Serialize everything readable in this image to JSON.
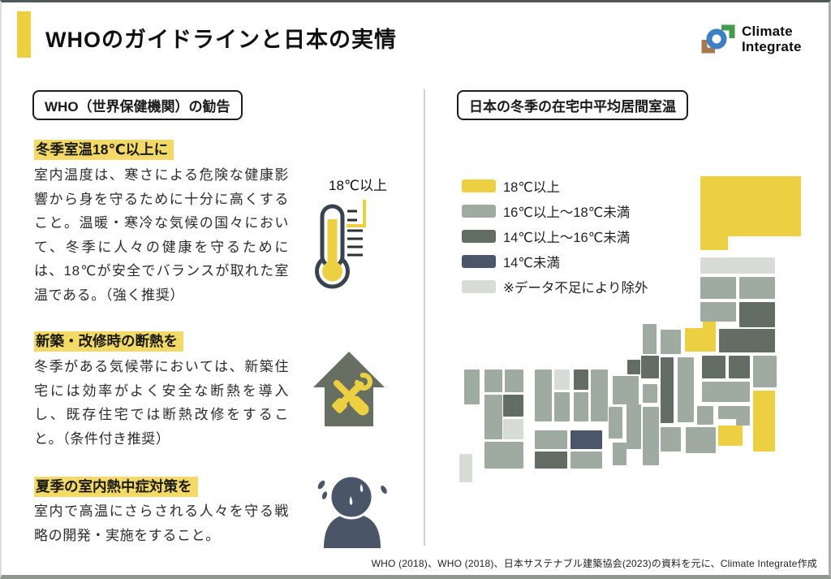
{
  "page": {
    "title": "WHOのガイドラインと日本の実情",
    "footer": "WHO (2018)、WHO (2018)、日本サステナブル建築協会(2023)の資料を元に、Climate Integrate作成"
  },
  "logo": {
    "line1": "Climate",
    "line2": "Integrate"
  },
  "colors": {
    "accent": "#edd042",
    "highlight": "#f3da68",
    "house_icon": "#666f61",
    "person_icon": "#4a5568",
    "thermo_outline": "#39434f",
    "tick": "#2e2e2e",
    "logo_blue": "#3c7fc2",
    "logo_green": "#439b4e",
    "logo_brown": "#a67a4e",
    "divider": "#d0d0d0",
    "text": "#1a1a1a"
  },
  "left_panel": {
    "header": "WHO（世界保健機関）の勧告",
    "thermometer_label": "18℃以上",
    "sections": [
      {
        "heading": "冬季室温18℃以上に",
        "body": "室内温度は、寒さによる危険な健康影響から身を守るために十分に高くすること。温暖・寒冷な気候の国々において、冬季に人々の健康を守るためには、18℃が安全でバランスが取れた室温である。（強く推奨）"
      },
      {
        "heading": "新築・改修時の断熱を",
        "body": "冬季がある気候帯においては、新築住宅には効率がよく安全な断熱を導入し、既存住宅では断熱改修をすること。（条件付き推奨）"
      },
      {
        "heading": "夏季の室内熱中症対策を",
        "body": "室内で高温にさらされる人々を守る戦略の開発・実施をすること。"
      }
    ]
  },
  "right_panel": {
    "header": "日本の冬季の在宅中平均居間室温"
  },
  "chart_data": {
    "type": "heatmap",
    "title": "日本の冬季の在宅中平均居間室温",
    "legend": [
      {
        "label": "18℃以上",
        "category": "18plus",
        "color": "#edd042"
      },
      {
        "label": "16℃以上〜18℃未満",
        "category": "16to18",
        "color": "#9faaa0"
      },
      {
        "label": "14℃以上〜16℃未満",
        "category": "14to16",
        "color": "#636d63"
      },
      {
        "label": "14℃未満",
        "category": "below14",
        "color": "#4b5768"
      },
      {
        "label": "※データ不足により除外",
        "category": "excluded",
        "color": "#d8dcd6"
      }
    ],
    "tiles": [
      {
        "name": "hokkaido",
        "cat": "18plus",
        "rects": [
          [
            306,
            19,
            124,
            74
          ],
          [
            306,
            91,
            34,
            19
          ]
        ]
      },
      {
        "name": "aomori",
        "cat": "excluded",
        "rects": [
          [
            306,
            119,
            92,
            20
          ]
        ]
      },
      {
        "name": "akita",
        "cat": "16to18",
        "rects": [
          [
            306,
            143,
            44,
            27
          ]
        ]
      },
      {
        "name": "iwate",
        "cat": "16to18",
        "rects": [
          [
            354,
            143,
            44,
            27
          ]
        ]
      },
      {
        "name": "yamagata",
        "cat": "16to18",
        "rects": [
          [
            306,
            174,
            44,
            24
          ]
        ]
      },
      {
        "name": "miyagi",
        "cat": "14to16",
        "rects": [
          [
            354,
            174,
            44,
            31
          ]
        ]
      },
      {
        "name": "niigata",
        "cat": "18plus",
        "rects": [
          [
            309,
            198,
            16,
            9
          ],
          [
            287,
            206,
            38,
            29
          ]
        ]
      },
      {
        "name": "fukushima",
        "cat": "14to16",
        "rects": [
          [
            329,
            207,
            69,
            29
          ]
        ]
      },
      {
        "name": "gunma",
        "cat": "14to16",
        "rects": [
          [
            308,
            240,
            29,
            28
          ]
        ]
      },
      {
        "name": "tochigi",
        "cat": "14to16",
        "rects": [
          [
            341,
            240,
            26,
            28
          ]
        ]
      },
      {
        "name": "ibaraki",
        "cat": "16to18",
        "rects": [
          [
            371,
            240,
            29,
            39
          ]
        ]
      },
      {
        "name": "saitama",
        "cat": "16to18",
        "rects": [
          [
            308,
            272,
            59,
            25
          ]
        ]
      },
      {
        "name": "tokyo",
        "cat": "16to18",
        "rects": [
          [
            328,
            302,
            39,
            16
          ],
          [
            350,
            318,
            17,
            8
          ]
        ]
      },
      {
        "name": "kanagawa",
        "cat": "18plus",
        "rects": [
          [
            328,
            326,
            30,
            25
          ]
        ]
      },
      {
        "name": "chiba",
        "cat": "18plus",
        "rects": [
          [
            371,
            283,
            27,
            75
          ]
        ]
      },
      {
        "name": "ishikawa",
        "cat": "16to18",
        "rects": [
          [
            235,
            201,
            17,
            37
          ]
        ]
      },
      {
        "name": "toyama",
        "cat": "16to18",
        "rects": [
          [
            257,
            208,
            25,
            30
          ]
        ]
      },
      {
        "name": "nagano",
        "cat": "14to16",
        "rects": [
          [
            257,
            242,
            16,
            81
          ]
        ]
      },
      {
        "name": "gifu",
        "cat": "16to18",
        "rects": [
          [
            278,
            242,
            20,
            80
          ]
        ]
      },
      {
        "name": "yamanashi",
        "cat": "16to18",
        "rects": [
          [
            302,
            302,
            20,
            23
          ]
        ]
      },
      {
        "name": "shizuoka",
        "cat": "16to18",
        "rects": [
          [
            288,
            328,
            37,
            32
          ]
        ]
      },
      {
        "name": "aichi",
        "cat": "16to18",
        "rects": [
          [
            257,
            328,
            25,
            30
          ]
        ]
      },
      {
        "name": "shiga",
        "cat": "14to16",
        "rects": [
          [
            233,
            240,
            22,
            28
          ],
          [
            216,
            245,
            16,
            18
          ]
        ]
      },
      {
        "name": "fukui",
        "cat": "16to18",
        "rects": [
          [
            235,
            275,
            18,
            23
          ]
        ]
      },
      {
        "name": "kyoto",
        "cat": "16to18",
        "rects": [
          [
            198,
            265,
            32,
            35
          ]
        ]
      },
      {
        "name": "hyogo",
        "cat": "16to18",
        "rects": [
          [
            171,
            257,
            21,
            64
          ]
        ]
      },
      {
        "name": "osaka",
        "cat": "16to18",
        "rects": [
          [
            193,
            303,
            17,
            39
          ]
        ]
      },
      {
        "name": "nara",
        "cat": "16to18",
        "rects": [
          [
            215,
            300,
            18,
            55
          ]
        ]
      },
      {
        "name": "wakayama",
        "cat": "16to18",
        "rects": [
          [
            198,
            347,
            17,
            28
          ]
        ]
      },
      {
        "name": "mie",
        "cat": "16to18",
        "rects": [
          [
            235,
            303,
            20,
            72
          ]
        ]
      },
      {
        "name": "tottori",
        "cat": "14to16",
        "rects": [
          [
            150,
            257,
            18,
            25
          ]
        ]
      },
      {
        "name": "okayama",
        "cat": "16to18",
        "rects": [
          [
            150,
            285,
            18,
            36
          ]
        ]
      },
      {
        "name": "shimane",
        "cat": "excluded",
        "rects": [
          [
            126,
            257,
            19,
            25
          ]
        ]
      },
      {
        "name": "hiroshima",
        "cat": "16to18",
        "rects": [
          [
            126,
            285,
            19,
            36
          ]
        ]
      },
      {
        "name": "yamaguchi",
        "cat": "16to18",
        "rects": [
          [
            102,
            257,
            21,
            64
          ]
        ]
      },
      {
        "name": "kagawa",
        "cat": "below14",
        "rects": [
          [
            146,
            332,
            39,
            23
          ]
        ]
      },
      {
        "name": "ehime",
        "cat": "16to18",
        "rects": [
          [
            102,
            332,
            40,
            23
          ]
        ]
      },
      {
        "name": "tokushima",
        "cat": "16to18",
        "rects": [
          [
            146,
            358,
            39,
            21
          ]
        ]
      },
      {
        "name": "kochi",
        "cat": "14to16",
        "rects": [
          [
            102,
            358,
            40,
            21
          ]
        ]
      },
      {
        "name": "fukuoka",
        "cat": "16to18",
        "rects": [
          [
            65,
            257,
            23,
            28
          ]
        ]
      },
      {
        "name": "saga",
        "cat": "16to18",
        "rects": [
          [
            40,
            257,
            22,
            28
          ]
        ]
      },
      {
        "name": "nagasaki",
        "cat": "16to18",
        "rects": [
          [
            15,
            257,
            19,
            43
          ]
        ]
      },
      {
        "name": "oita",
        "cat": "14to16",
        "rects": [
          [
            63,
            288,
            25,
            27
          ]
        ]
      },
      {
        "name": "kumamoto",
        "cat": "16to18",
        "rects": [
          [
            40,
            288,
            22,
            55
          ]
        ]
      },
      {
        "name": "miyazaki",
        "cat": "excluded",
        "rects": [
          [
            63,
            318,
            25,
            25
          ]
        ]
      },
      {
        "name": "kagoshima",
        "cat": "16to18",
        "rects": [
          [
            40,
            346,
            48,
            33
          ]
        ]
      },
      {
        "name": "okinawa",
        "cat": "excluded",
        "rects": [
          [
            9,
            361,
            16,
            35
          ]
        ]
      }
    ]
  }
}
